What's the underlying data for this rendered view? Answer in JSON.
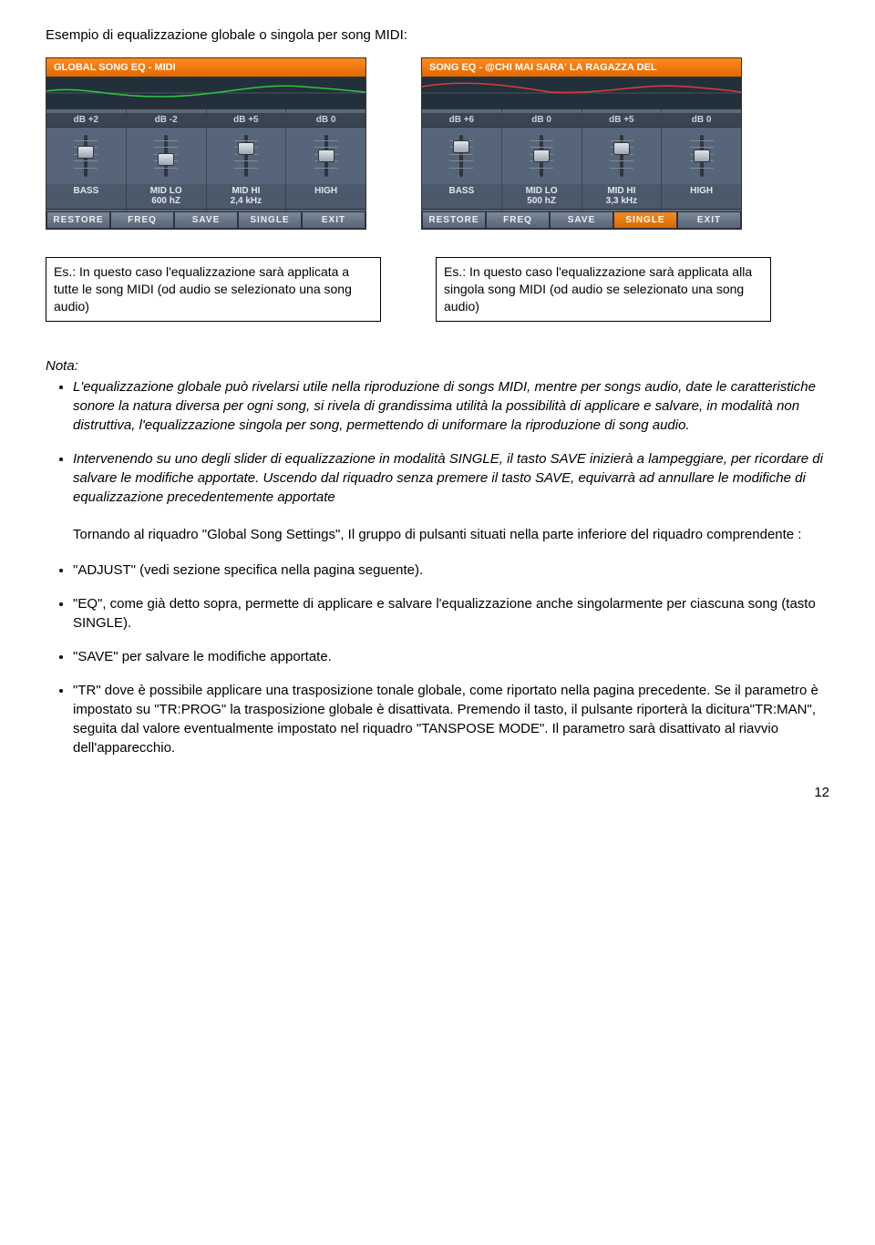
{
  "intro": "Esempio di equalizzazione globale o singola per song MIDI:",
  "panel_global": {
    "title": "GLOBAL SONG EQ - MIDI",
    "curve_color": "#2ec73a",
    "bands": [
      {
        "db": "dB +2",
        "name": "BASS",
        "freq": "",
        "thumb_pct": 42
      },
      {
        "db": "dB -2",
        "name": "MID LO",
        "freq": "600 hZ",
        "thumb_pct": 58
      },
      {
        "db": "dB +5",
        "name": "MID HI",
        "freq": "2,4 kHz",
        "thumb_pct": 34
      },
      {
        "db": "dB 0",
        "name": "HIGH",
        "freq": "",
        "thumb_pct": 50
      }
    ],
    "buttons": [
      {
        "label": "RESTORE",
        "active": false
      },
      {
        "label": "FREQ",
        "active": false
      },
      {
        "label": "SAVE",
        "active": false
      },
      {
        "label": "SINGLE",
        "active": false
      },
      {
        "label": "EXIT",
        "active": false
      }
    ]
  },
  "panel_single": {
    "title": "SONG EQ - @CHI MAI SARA' LA RAGAZZA DEL",
    "curve_color": "#e03a3a",
    "bands": [
      {
        "db": "dB +6",
        "name": "BASS",
        "freq": "",
        "thumb_pct": 30
      },
      {
        "db": "dB 0",
        "name": "MID LO",
        "freq": "500 hZ",
        "thumb_pct": 50
      },
      {
        "db": "dB +5",
        "name": "MID HI",
        "freq": "3,3 kHz",
        "thumb_pct": 34
      },
      {
        "db": "dB 0",
        "name": "HIGH",
        "freq": "",
        "thumb_pct": 50
      }
    ],
    "buttons": [
      {
        "label": "RESTORE",
        "active": false
      },
      {
        "label": "FREQ",
        "active": false
      },
      {
        "label": "SAVE",
        "active": false
      },
      {
        "label": "SINGLE",
        "active": true
      },
      {
        "label": "EXIT",
        "active": false
      }
    ]
  },
  "callout_left": "Es.: In questo caso l'equalizzazione sarà applicata a tutte le song MIDI (od audio se selezionato una song audio)",
  "callout_right": "Es.: In questo caso l'equalizzazione sarà applicata alla singola song MIDI (od audio se selezionato una song audio)",
  "nota_label": "Nota:",
  "nota_items": [
    "L'equalizzazione globale può rivelarsi utile nella riproduzione di songs MIDI, mentre per songs audio, date le caratteristiche sonore la natura diversa per ogni song, si rivela di grandissima utilità la possibilità di applicare e salvare, in modalità non distruttiva, l'equalizzazione singola per song, permettendo di uniformare la riproduzione di song audio.",
    "Intervenendo su uno degli slider di equalizzazione in modalità SINGLE, il tasto SAVE inizierà a lampeggiare, per ricordare di salvare le modifiche apportate. Uscendo dal riquadro senza premere il tasto SAVE, equivarrà ad annullare le modifiche di equalizzazione precedentemente apportate"
  ],
  "body_intro": "Tornando al riquadro \"Global Song Settings\", Il gruppo di pulsanti situati nella parte inferiore del riquadro comprendente :",
  "body_items": [
    "\"ADJUST\" (vedi sezione specifica nella pagina seguente).",
    "\"EQ\", come già detto sopra, permette di applicare e salvare l'equalizzazione anche singolarmente per ciascuna song (tasto SINGLE).",
    "\"SAVE\" per salvare le modifiche apportate.",
    "\"TR\" dove è possibile applicare una trasposizione tonale globale, come riportato nella pagina precedente. Se il parametro è impostato su \"TR:PROG\" la trasposizione globale è disattivata. Premendo il tasto, il pulsante riporterà la dicitura\"TR:MAN\", seguita dal valore eventualmente impostato nel riquadro \"TANSPOSE MODE\". Il parametro sarà disattivato al riavvio dell'apparecchio."
  ],
  "page_number": "12"
}
